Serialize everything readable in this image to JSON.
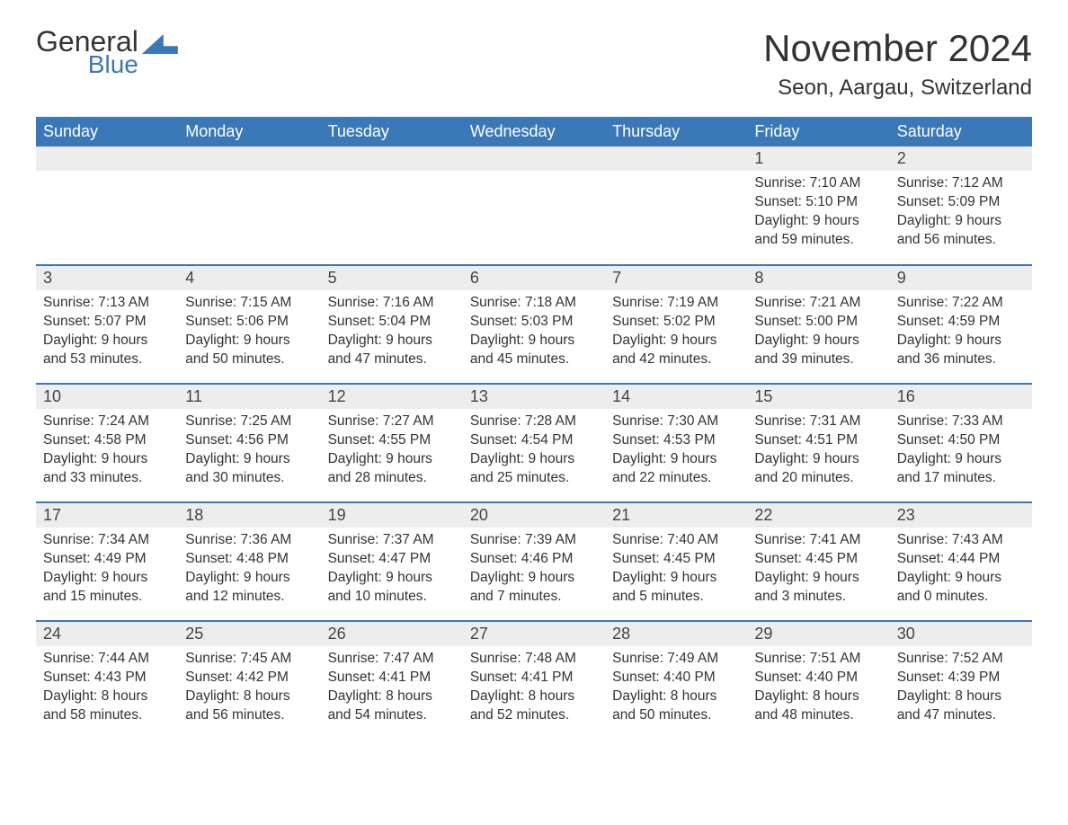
{
  "brand": {
    "part1": "General",
    "part2": "Blue"
  },
  "title": "November 2024",
  "location": "Seon, Aargau, Switzerland",
  "colors": {
    "accent": "#3b78b8",
    "header_row_bg": "#ededed",
    "text": "#333333",
    "bg": "#ffffff"
  },
  "typography": {
    "title_fontsize": 42,
    "location_fontsize": 24,
    "dayheader_fontsize": 18,
    "body_fontsize": 15.5,
    "font_family": "Arial"
  },
  "calendar": {
    "type": "table",
    "columns": [
      "Sunday",
      "Monday",
      "Tuesday",
      "Wednesday",
      "Thursday",
      "Friday",
      "Saturday"
    ],
    "weeks": [
      [
        null,
        null,
        null,
        null,
        null,
        {
          "n": "1",
          "sunrise": "Sunrise: 7:10 AM",
          "sunset": "Sunset: 5:10 PM",
          "day1": "Daylight: 9 hours",
          "day2": "and 59 minutes."
        },
        {
          "n": "2",
          "sunrise": "Sunrise: 7:12 AM",
          "sunset": "Sunset: 5:09 PM",
          "day1": "Daylight: 9 hours",
          "day2": "and 56 minutes."
        }
      ],
      [
        {
          "n": "3",
          "sunrise": "Sunrise: 7:13 AM",
          "sunset": "Sunset: 5:07 PM",
          "day1": "Daylight: 9 hours",
          "day2": "and 53 minutes."
        },
        {
          "n": "4",
          "sunrise": "Sunrise: 7:15 AM",
          "sunset": "Sunset: 5:06 PM",
          "day1": "Daylight: 9 hours",
          "day2": "and 50 minutes."
        },
        {
          "n": "5",
          "sunrise": "Sunrise: 7:16 AM",
          "sunset": "Sunset: 5:04 PM",
          "day1": "Daylight: 9 hours",
          "day2": "and 47 minutes."
        },
        {
          "n": "6",
          "sunrise": "Sunrise: 7:18 AM",
          "sunset": "Sunset: 5:03 PM",
          "day1": "Daylight: 9 hours",
          "day2": "and 45 minutes."
        },
        {
          "n": "7",
          "sunrise": "Sunrise: 7:19 AM",
          "sunset": "Sunset: 5:02 PM",
          "day1": "Daylight: 9 hours",
          "day2": "and 42 minutes."
        },
        {
          "n": "8",
          "sunrise": "Sunrise: 7:21 AM",
          "sunset": "Sunset: 5:00 PM",
          "day1": "Daylight: 9 hours",
          "day2": "and 39 minutes."
        },
        {
          "n": "9",
          "sunrise": "Sunrise: 7:22 AM",
          "sunset": "Sunset: 4:59 PM",
          "day1": "Daylight: 9 hours",
          "day2": "and 36 minutes."
        }
      ],
      [
        {
          "n": "10",
          "sunrise": "Sunrise: 7:24 AM",
          "sunset": "Sunset: 4:58 PM",
          "day1": "Daylight: 9 hours",
          "day2": "and 33 minutes."
        },
        {
          "n": "11",
          "sunrise": "Sunrise: 7:25 AM",
          "sunset": "Sunset: 4:56 PM",
          "day1": "Daylight: 9 hours",
          "day2": "and 30 minutes."
        },
        {
          "n": "12",
          "sunrise": "Sunrise: 7:27 AM",
          "sunset": "Sunset: 4:55 PM",
          "day1": "Daylight: 9 hours",
          "day2": "and 28 minutes."
        },
        {
          "n": "13",
          "sunrise": "Sunrise: 7:28 AM",
          "sunset": "Sunset: 4:54 PM",
          "day1": "Daylight: 9 hours",
          "day2": "and 25 minutes."
        },
        {
          "n": "14",
          "sunrise": "Sunrise: 7:30 AM",
          "sunset": "Sunset: 4:53 PM",
          "day1": "Daylight: 9 hours",
          "day2": "and 22 minutes."
        },
        {
          "n": "15",
          "sunrise": "Sunrise: 7:31 AM",
          "sunset": "Sunset: 4:51 PM",
          "day1": "Daylight: 9 hours",
          "day2": "and 20 minutes."
        },
        {
          "n": "16",
          "sunrise": "Sunrise: 7:33 AM",
          "sunset": "Sunset: 4:50 PM",
          "day1": "Daylight: 9 hours",
          "day2": "and 17 minutes."
        }
      ],
      [
        {
          "n": "17",
          "sunrise": "Sunrise: 7:34 AM",
          "sunset": "Sunset: 4:49 PM",
          "day1": "Daylight: 9 hours",
          "day2": "and 15 minutes."
        },
        {
          "n": "18",
          "sunrise": "Sunrise: 7:36 AM",
          "sunset": "Sunset: 4:48 PM",
          "day1": "Daylight: 9 hours",
          "day2": "and 12 minutes."
        },
        {
          "n": "19",
          "sunrise": "Sunrise: 7:37 AM",
          "sunset": "Sunset: 4:47 PM",
          "day1": "Daylight: 9 hours",
          "day2": "and 10 minutes."
        },
        {
          "n": "20",
          "sunrise": "Sunrise: 7:39 AM",
          "sunset": "Sunset: 4:46 PM",
          "day1": "Daylight: 9 hours",
          "day2": "and 7 minutes."
        },
        {
          "n": "21",
          "sunrise": "Sunrise: 7:40 AM",
          "sunset": "Sunset: 4:45 PM",
          "day1": "Daylight: 9 hours",
          "day2": "and 5 minutes."
        },
        {
          "n": "22",
          "sunrise": "Sunrise: 7:41 AM",
          "sunset": "Sunset: 4:45 PM",
          "day1": "Daylight: 9 hours",
          "day2": "and 3 minutes."
        },
        {
          "n": "23",
          "sunrise": "Sunrise: 7:43 AM",
          "sunset": "Sunset: 4:44 PM",
          "day1": "Daylight: 9 hours",
          "day2": "and 0 minutes."
        }
      ],
      [
        {
          "n": "24",
          "sunrise": "Sunrise: 7:44 AM",
          "sunset": "Sunset: 4:43 PM",
          "day1": "Daylight: 8 hours",
          "day2": "and 58 minutes."
        },
        {
          "n": "25",
          "sunrise": "Sunrise: 7:45 AM",
          "sunset": "Sunset: 4:42 PM",
          "day1": "Daylight: 8 hours",
          "day2": "and 56 minutes."
        },
        {
          "n": "26",
          "sunrise": "Sunrise: 7:47 AM",
          "sunset": "Sunset: 4:41 PM",
          "day1": "Daylight: 8 hours",
          "day2": "and 54 minutes."
        },
        {
          "n": "27",
          "sunrise": "Sunrise: 7:48 AM",
          "sunset": "Sunset: 4:41 PM",
          "day1": "Daylight: 8 hours",
          "day2": "and 52 minutes."
        },
        {
          "n": "28",
          "sunrise": "Sunrise: 7:49 AM",
          "sunset": "Sunset: 4:40 PM",
          "day1": "Daylight: 8 hours",
          "day2": "and 50 minutes."
        },
        {
          "n": "29",
          "sunrise": "Sunrise: 7:51 AM",
          "sunset": "Sunset: 4:40 PM",
          "day1": "Daylight: 8 hours",
          "day2": "and 48 minutes."
        },
        {
          "n": "30",
          "sunrise": "Sunrise: 7:52 AM",
          "sunset": "Sunset: 4:39 PM",
          "day1": "Daylight: 8 hours",
          "day2": "and 47 minutes."
        }
      ]
    ]
  }
}
